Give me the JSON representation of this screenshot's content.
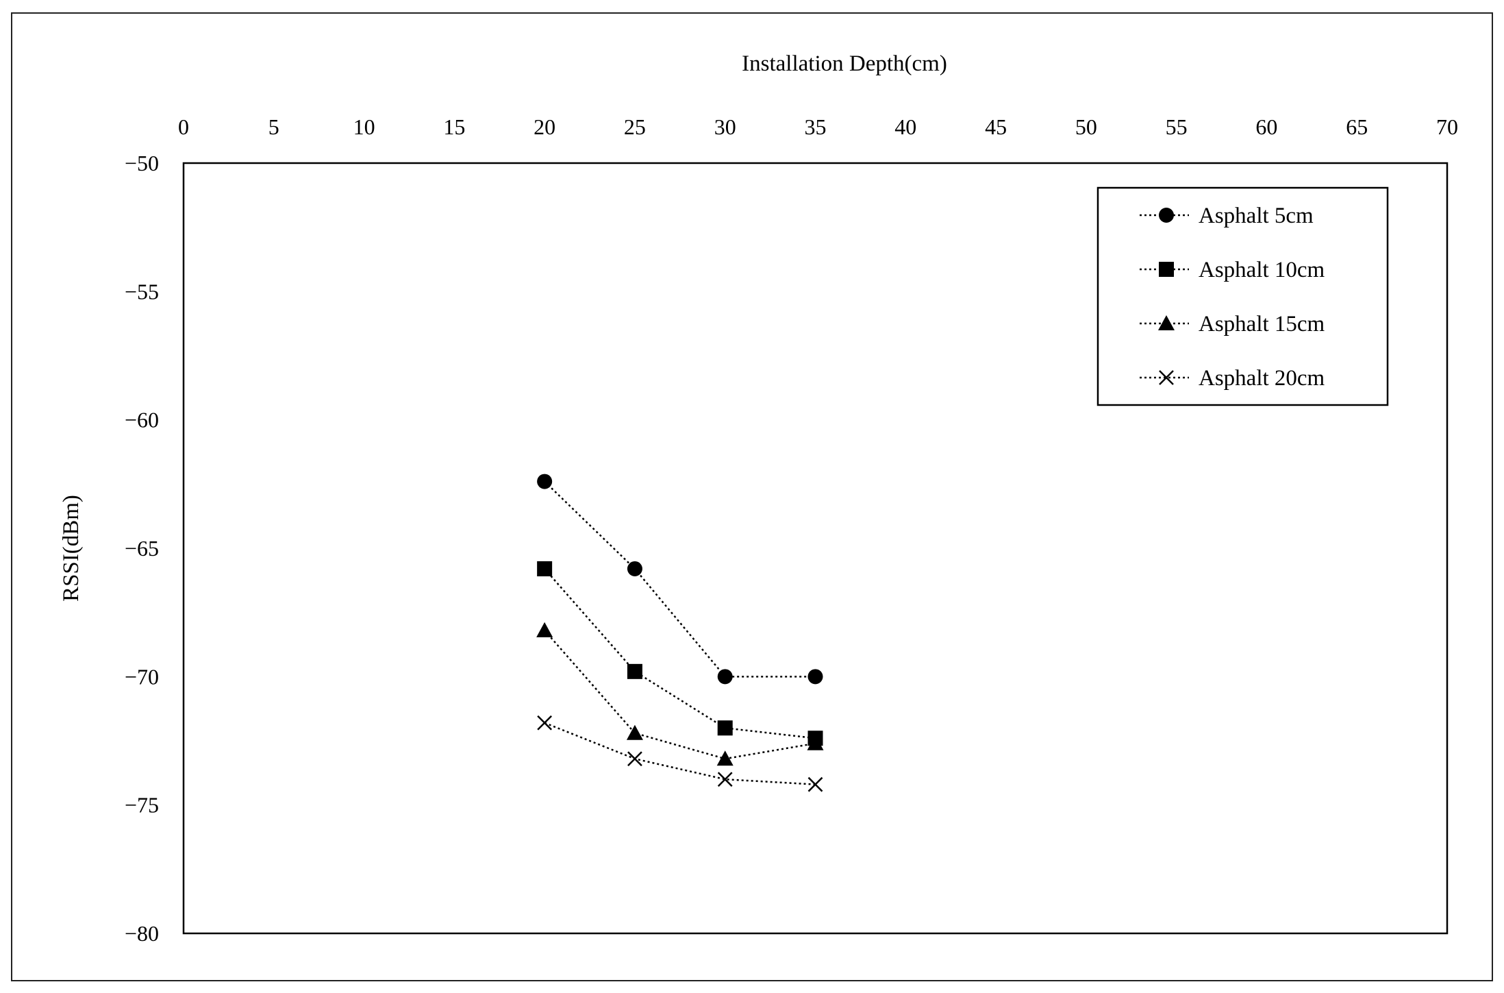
{
  "chart_data": {
    "type": "line",
    "xlabel": "Installation Depth(cm)",
    "ylabel": "RSSI(dBm)",
    "x_axis_position": "top",
    "xlim": [
      0,
      70
    ],
    "ylim": [
      -80,
      -50
    ],
    "x_ticks": [
      0,
      5,
      10,
      15,
      20,
      25,
      30,
      35,
      40,
      45,
      50,
      55,
      60,
      65,
      70
    ],
    "y_ticks": [
      -50,
      -55,
      -60,
      -65,
      -70,
      -75,
      -80
    ],
    "y_tick_labels": [
      "−50",
      "−55",
      "−60",
      "−65",
      "−70",
      "−75",
      "−80"
    ],
    "grid": false,
    "legend_position": "top-right",
    "line_style": "dotted",
    "series": [
      {
        "name": "Asphalt 5cm",
        "marker": "circle",
        "x": [
          20,
          25,
          30,
          35
        ],
        "y": [
          -62.4,
          -65.8,
          -70.0,
          -70.0
        ]
      },
      {
        "name": "Asphalt 10cm",
        "marker": "square",
        "x": [
          20,
          25,
          30,
          35
        ],
        "y": [
          -65.8,
          -69.8,
          -72.0,
          -72.4
        ]
      },
      {
        "name": "Asphalt 15cm",
        "marker": "triangle",
        "x": [
          20,
          25,
          30,
          35
        ],
        "y": [
          -68.2,
          -72.2,
          -73.2,
          -72.6
        ]
      },
      {
        "name": "Asphalt 20cm",
        "marker": "x",
        "x": [
          20,
          25,
          30,
          35
        ],
        "y": [
          -71.8,
          -73.2,
          -74.0,
          -74.2
        ]
      }
    ]
  }
}
